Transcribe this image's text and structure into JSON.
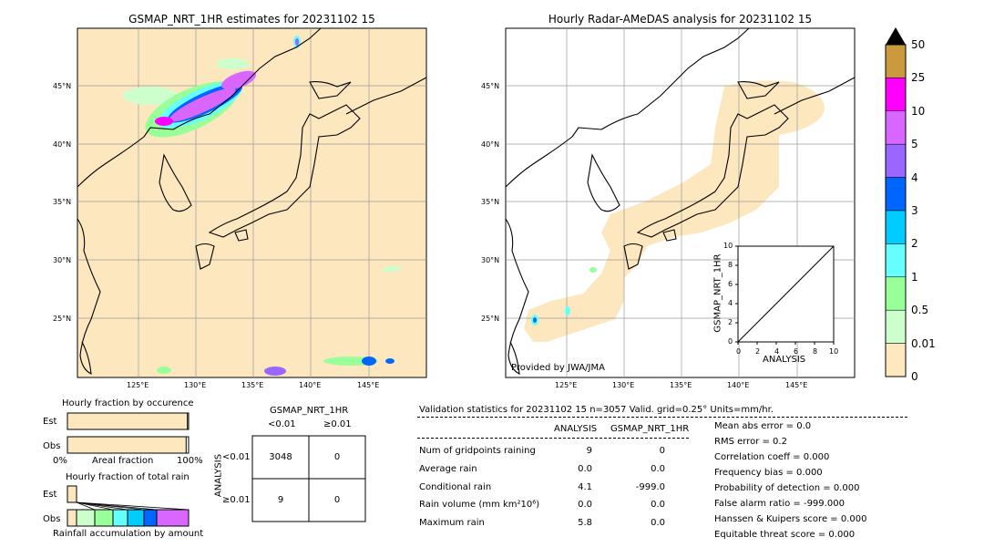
{
  "left_map": {
    "title": "GSMAP_NRT_1HR estimates for 20231102 15",
    "lat_labels": [
      "45°N",
      "40°N",
      "35°N",
      "30°N",
      "25°N"
    ],
    "lon_labels": [
      "125°E",
      "130°E",
      "135°E",
      "140°E",
      "145°E"
    ]
  },
  "right_map": {
    "title": "Hourly Radar-AMeDAS analysis for 20231102 15",
    "lat_labels": [
      "45°N",
      "40°N",
      "35°N",
      "30°N",
      "25°N"
    ],
    "lon_labels": [
      "125°E",
      "130°E",
      "135°E",
      "140°E",
      "145°E"
    ],
    "credit": "Provided by JWA/JMA"
  },
  "colorbar": {
    "labels": [
      "50",
      "25",
      "10",
      "5",
      "4",
      "3",
      "2",
      "1",
      "0.5",
      "0.01",
      "0"
    ],
    "colors": [
      "#cc9a3e",
      "#ff00ff",
      "#d966ff",
      "#9966ff",
      "#0066ff",
      "#00ccff",
      "#66ffff",
      "#99ff99",
      "#ccffcc",
      "#ffe8c0"
    ]
  },
  "inset_scatter": {
    "xlabel": "ANALYSIS",
    "ylabel": "GSMAP_NRT_1HR",
    "ticks": [
      "0",
      "2",
      "4",
      "6",
      "8",
      "10"
    ]
  },
  "occurrence": {
    "title": "Hourly fraction by occurence",
    "row_est": "Est",
    "row_obs": "Obs",
    "axis_left": "0%",
    "axis_mid": "Areal fraction",
    "axis_right": "100%",
    "est_fraction": 0.99,
    "obs_fraction": 0.98
  },
  "rain_amount": {
    "title": "Hourly fraction of total rain",
    "row_est": "Est",
    "row_obs": "Obs",
    "footer": "Rainfall accumulation by amount"
  },
  "contingency": {
    "col_header": "GSMAP_NRT_1HR",
    "col_lt": "<0.01",
    "col_ge": "≥0.01",
    "row_header": "ANALYSIS",
    "row_lt": "<0.01",
    "row_ge": "≥0.01",
    "cells": [
      "3048",
      "0",
      "9",
      "0"
    ]
  },
  "validation": {
    "header": "Validation statistics for 20231102 15  n=3057 Valid. grid=0.25° Units=mm/hr.",
    "col_analysis": "ANALYSIS",
    "col_gsmap": "GSMAP_NRT_1HR",
    "rows": [
      {
        "label": "Num of gridpoints raining",
        "analysis": "9",
        "gsmap": "0"
      },
      {
        "label": "Average rain",
        "analysis": "0.0",
        "gsmap": "0.0"
      },
      {
        "label": "Conditional rain",
        "analysis": "4.1",
        "gsmap": "-999.0"
      },
      {
        "label": "Rain volume (mm km²10⁶)",
        "analysis": "0.0",
        "gsmap": "0.0"
      },
      {
        "label": "Maximum rain",
        "analysis": "5.8",
        "gsmap": "0.0"
      }
    ],
    "scores": [
      "Mean abs error =    0.0",
      "RMS error =    0.2",
      "Correlation coeff =  0.000",
      "Frequency bias =  0.000",
      "Probability of detection =  0.000",
      "False alarm ratio = -999.000",
      "Hanssen & Kuipers score =  0.000",
      "Equitable threat score =  0.000"
    ]
  }
}
